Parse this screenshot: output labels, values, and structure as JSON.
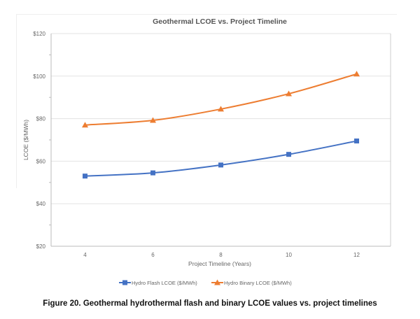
{
  "chart_data": {
    "type": "line",
    "title": "Geothermal LCOE vs. Project Timeline",
    "xlabel": "Project Timeline (Years)",
    "ylabel": "LCOE ($/MWh)",
    "x": [
      4,
      6,
      8,
      10,
      12
    ],
    "xlim": [
      3,
      13
    ],
    "ylim": [
      20,
      120
    ],
    "yticks": [
      "$20",
      "$40",
      "$60",
      "$80",
      "$100",
      "$120"
    ],
    "ytick_values": [
      20,
      40,
      60,
      80,
      100,
      120
    ],
    "xticks": [
      "4",
      "6",
      "8",
      "10",
      "12"
    ],
    "grid": true,
    "legend_position": "bottom",
    "series": [
      {
        "name": "Hydro Flash LCOE ($/MWh)",
        "values": [
          53,
          54.5,
          58.2,
          63.2,
          69.5
        ],
        "color": "#4472C4",
        "marker": "square"
      },
      {
        "name": "Hydro Binary LCOE ($/MWh)",
        "values": [
          77,
          79.2,
          84.5,
          91.7,
          101
        ],
        "color": "#ED7D31",
        "marker": "triangle"
      }
    ]
  },
  "caption": "Figure 20. Geothermal hydrothermal flash and binary LCOE values vs. project timelines"
}
